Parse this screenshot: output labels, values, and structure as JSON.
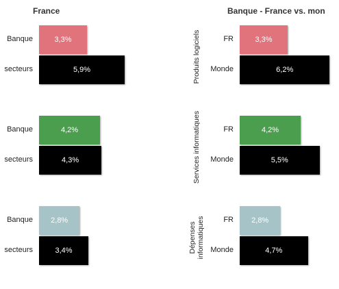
{
  "chart_data": [
    {
      "type": "bar",
      "orientation": "horizontal",
      "title": "France",
      "groups": [
        {
          "label": "",
          "bars": [
            {
              "category": "Banque",
              "value": 3.3,
              "value_label": "3,3%",
              "color": "#e0737b"
            },
            {
              "category": "secteurs",
              "value": 5.9,
              "value_label": "5,9%",
              "color": "#000000"
            }
          ]
        },
        {
          "label": "",
          "bars": [
            {
              "category": "Banque",
              "value": 4.2,
              "value_label": "4,2%",
              "color": "#4a9e4e"
            },
            {
              "category": "secteurs",
              "value": 4.3,
              "value_label": "4,3%",
              "color": "#000000"
            }
          ]
        },
        {
          "label": "",
          "bars": [
            {
              "category": "Banque",
              "value": 2.8,
              "value_label": "2,8%",
              "color": "#a6c4c8"
            },
            {
              "category": "secteurs",
              "value": 3.4,
              "value_label": "3,4%",
              "color": "#000000"
            }
          ]
        }
      ]
    },
    {
      "type": "bar",
      "orientation": "horizontal",
      "title": "Banque - France vs. mon",
      "groups": [
        {
          "label": [
            "Produits logiciels"
          ],
          "bars": [
            {
              "category": "FR",
              "value": 3.3,
              "value_label": "3,3%",
              "color": "#e0737b"
            },
            {
              "category": "Monde",
              "value": 6.2,
              "value_label": "6,2%",
              "color": "#000000"
            }
          ]
        },
        {
          "label": [
            "Services informatiques"
          ],
          "bars": [
            {
              "category": "FR",
              "value": 4.2,
              "value_label": "4,2%",
              "color": "#4a9e4e"
            },
            {
              "category": "Monde",
              "value": 5.5,
              "value_label": "5,5%",
              "color": "#000000"
            }
          ]
        },
        {
          "label": [
            "Dépenses",
            "informatiques"
          ],
          "bars": [
            {
              "category": "FR",
              "value": 2.8,
              "value_label": "2,8%",
              "color": "#a6c4c8"
            },
            {
              "category": "Monde",
              "value": 4.7,
              "value_label": "4,7%",
              "color": "#000000"
            }
          ]
        }
      ]
    }
  ]
}
